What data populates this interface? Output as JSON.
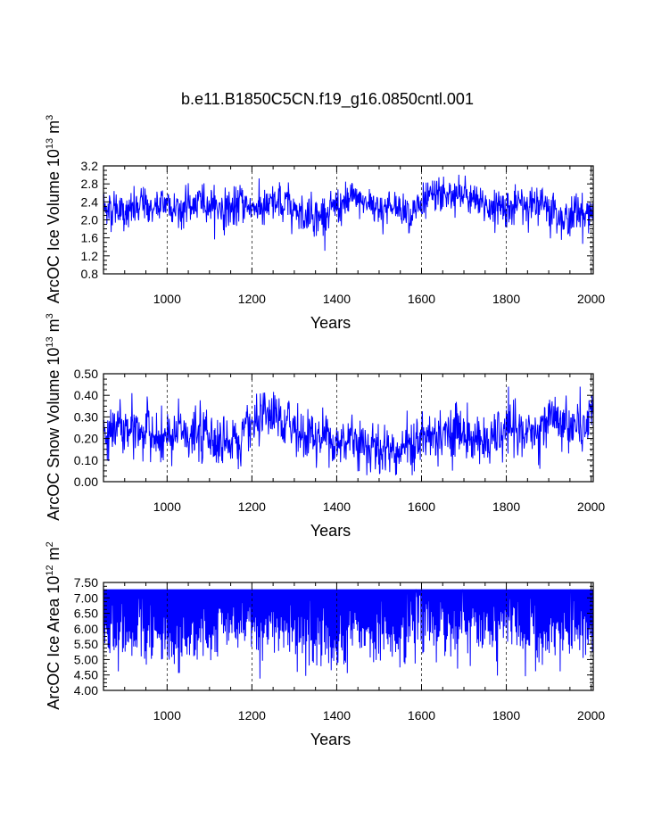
{
  "figure_title": "b.e11.B1850C5CN.f19_g16.0850cntl.001",
  "chart_data": [
    {
      "type": "line",
      "ylabel_main": "ArcOC Ice Volume 10",
      "ylabel_exp": "13",
      "ylabel_unit": " m",
      "ylabel_unit_exp": "3",
      "xlabel": "Years",
      "xlim": [
        850,
        2005
      ],
      "ylim": [
        0.8,
        3.2
      ],
      "xticks": [
        1000,
        1200,
        1400,
        1600,
        1800,
        2000
      ],
      "xtick_labels": [
        "1000",
        "1200",
        "1400",
        "1600",
        "1800",
        "2000"
      ],
      "yticks": [
        0.8,
        1.2,
        1.6,
        2.0,
        2.4,
        2.8,
        3.2
      ],
      "ytick_labels": [
        "0.8",
        "1.2",
        "1.6",
        "2.0",
        "2.4",
        "2.8",
        "3.2"
      ],
      "series": [
        {
          "name": "ice_volume",
          "color": "#0000ff",
          "x_start": 850,
          "x_end": 2005,
          "mean": 2.3,
          "spread": 0.26,
          "min": 1.2,
          "max": 3.15
        }
      ],
      "gridlines_x": [
        1000,
        1200,
        1400,
        1600,
        1800,
        2000
      ]
    },
    {
      "type": "line",
      "ylabel_main": "ArcOC Snow Volume 10",
      "ylabel_exp": "13",
      "ylabel_unit": " m",
      "ylabel_unit_exp": "3",
      "xlabel": "Years",
      "xlim": [
        850,
        2005
      ],
      "ylim": [
        0.0,
        0.5
      ],
      "xticks": [
        1000,
        1200,
        1400,
        1600,
        1800,
        2000
      ],
      "xtick_labels": [
        "1000",
        "1200",
        "1400",
        "1600",
        "1800",
        "2000"
      ],
      "yticks": [
        0.0,
        0.1,
        0.2,
        0.3,
        0.4,
        0.5
      ],
      "ytick_labels": [
        "0.00",
        "0.10",
        "0.20",
        "0.30",
        "0.40",
        "0.50"
      ],
      "series": [
        {
          "name": "snow_volume",
          "color": "#0000ff",
          "x_start": 850,
          "x_end": 2005,
          "mean": 0.2,
          "spread": 0.075,
          "min": 0.03,
          "max": 0.44
        }
      ],
      "gridlines_x": [
        1000,
        1200,
        1400,
        1600,
        1800,
        2000
      ]
    },
    {
      "type": "line",
      "ylabel_main": "ArcOC Ice Area 10",
      "ylabel_exp": "12",
      "ylabel_unit": " m",
      "ylabel_unit_exp": "2",
      "xlabel": "Years",
      "xlim": [
        850,
        2005
      ],
      "ylim": [
        4.0,
        7.5
      ],
      "xticks": [
        1000,
        1200,
        1400,
        1600,
        1800,
        2000
      ],
      "xtick_labels": [
        "1000",
        "1200",
        "1400",
        "1600",
        "1800",
        "2000"
      ],
      "yticks": [
        4.0,
        4.5,
        5.0,
        5.5,
        6.0,
        6.5,
        7.0,
        7.5
      ],
      "ytick_labels": [
        "4.00",
        "4.50",
        "5.00",
        "5.50",
        "6.00",
        "6.50",
        "7.00",
        "7.50"
      ],
      "series": [
        {
          "name": "ice_area",
          "color": "#0000ff",
          "x_start": 850,
          "x_end": 2005,
          "upper": 7.28,
          "lower_mean": 5.8,
          "spread": 0.5,
          "min": 4.1,
          "max": 7.28
        }
      ],
      "gridlines_x": [
        1000,
        1200,
        1400,
        1600,
        1800,
        2000
      ]
    }
  ]
}
